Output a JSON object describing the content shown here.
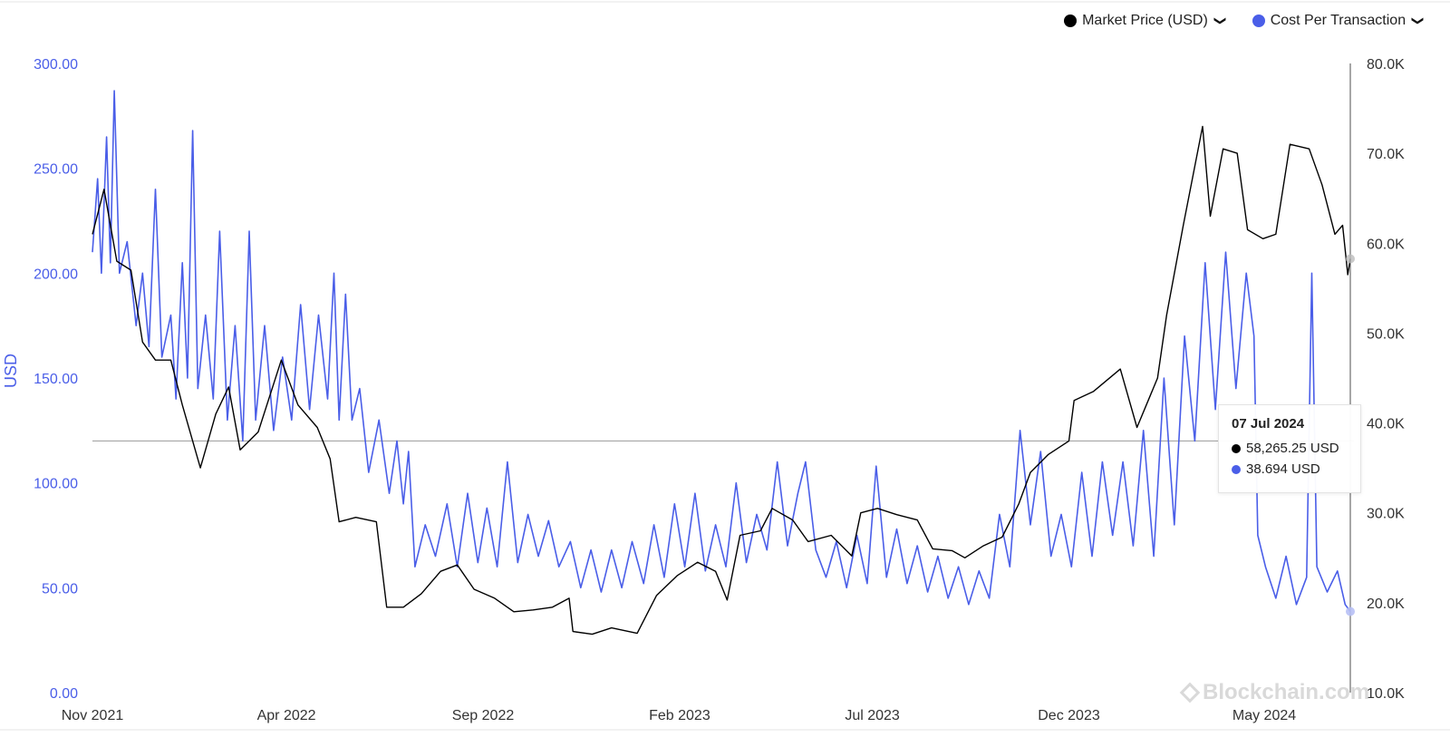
{
  "legend": {
    "items": [
      {
        "label": "Market Price (USD)",
        "color": "#000000",
        "chevron": "chevron-down-icon"
      },
      {
        "label": "Cost Per Transaction",
        "color": "#4a5ee8",
        "chevron": "chevron-down-icon"
      }
    ]
  },
  "tooltip": {
    "date": "07 Jul 2024",
    "rows": [
      {
        "value": "58,265.25 USD",
        "color": "#000000"
      },
      {
        "value": "38.694 USD",
        "color": "#4a5ee8"
      }
    ]
  },
  "watermark": {
    "text": "Blockchain.com",
    "icon": "blockchain-logo-icon"
  },
  "chart_data": {
    "type": "line",
    "x_tick_labels": [
      "Nov 2021",
      "Apr 2022",
      "Sep 2022",
      "Feb 2023",
      "Jul 2023",
      "Dec 2023",
      "May 2024"
    ],
    "x_range": [
      "2021-11-01",
      "2024-07-07"
    ],
    "y_left": {
      "label": "USD",
      "range": [
        0,
        300
      ],
      "ticks": [
        "0.00",
        "50.00",
        "100.00",
        "150.00",
        "200.00",
        "250.00",
        "300.00"
      ],
      "color": "#4a5ee8"
    },
    "y_right": {
      "range": [
        10000,
        80000
      ],
      "ticks": [
        "10.0K",
        "20.0K",
        "30.0K",
        "40.0K",
        "50.0K",
        "60.0K",
        "70.0K",
        "80.0K"
      ]
    },
    "crosshair": {
      "date": "2024-07-07",
      "y_right_value": 38000
    },
    "grid": false,
    "legend_position": "top-right",
    "series": [
      {
        "name": "Market Price (USD)",
        "axis": "right",
        "color": "#000000",
        "points": [
          [
            "2021-11-01",
            61000
          ],
          [
            "2021-11-10",
            66000
          ],
          [
            "2021-11-20",
            58000
          ],
          [
            "2021-12-01",
            57000
          ],
          [
            "2021-12-10",
            49000
          ],
          [
            "2021-12-20",
            47000
          ],
          [
            "2022-01-01",
            47000
          ],
          [
            "2022-01-10",
            42000
          ],
          [
            "2022-01-24",
            35000
          ],
          [
            "2022-02-05",
            41000
          ],
          [
            "2022-02-15",
            44000
          ],
          [
            "2022-02-24",
            37000
          ],
          [
            "2022-03-10",
            39000
          ],
          [
            "2022-03-28",
            47000
          ],
          [
            "2022-04-10",
            42000
          ],
          [
            "2022-04-25",
            39500
          ],
          [
            "2022-05-05",
            36000
          ],
          [
            "2022-05-12",
            29000
          ],
          [
            "2022-05-25",
            29500
          ],
          [
            "2022-06-10",
            29000
          ],
          [
            "2022-06-18",
            19500
          ],
          [
            "2022-07-01",
            19500
          ],
          [
            "2022-07-15",
            21000
          ],
          [
            "2022-07-30",
            23500
          ],
          [
            "2022-08-12",
            24200
          ],
          [
            "2022-08-25",
            21500
          ],
          [
            "2022-09-10",
            20500
          ],
          [
            "2022-09-25",
            19000
          ],
          [
            "2022-10-10",
            19200
          ],
          [
            "2022-10-25",
            19500
          ],
          [
            "2022-11-07",
            20500
          ],
          [
            "2022-11-10",
            16800
          ],
          [
            "2022-11-25",
            16500
          ],
          [
            "2022-12-10",
            17200
          ],
          [
            "2022-12-30",
            16600
          ],
          [
            "2023-01-14",
            20800
          ],
          [
            "2023-01-30",
            23000
          ],
          [
            "2023-02-15",
            24500
          ],
          [
            "2023-03-01",
            23500
          ],
          [
            "2023-03-10",
            20300
          ],
          [
            "2023-03-20",
            27500
          ],
          [
            "2023-04-05",
            28000
          ],
          [
            "2023-04-14",
            30500
          ],
          [
            "2023-04-30",
            29200
          ],
          [
            "2023-05-12",
            26800
          ],
          [
            "2023-05-30",
            27500
          ],
          [
            "2023-06-15",
            25200
          ],
          [
            "2023-06-22",
            30000
          ],
          [
            "2023-07-05",
            30500
          ],
          [
            "2023-07-20",
            29800
          ],
          [
            "2023-08-05",
            29200
          ],
          [
            "2023-08-17",
            26000
          ],
          [
            "2023-09-01",
            25800
          ],
          [
            "2023-09-11",
            25000
          ],
          [
            "2023-09-25",
            26300
          ],
          [
            "2023-10-10",
            27300
          ],
          [
            "2023-10-23",
            31000
          ],
          [
            "2023-11-01",
            34500
          ],
          [
            "2023-11-15",
            36500
          ],
          [
            "2023-12-01",
            38000
          ],
          [
            "2023-12-05",
            42500
          ],
          [
            "2023-12-20",
            43500
          ],
          [
            "2024-01-10",
            46000
          ],
          [
            "2024-01-23",
            39500
          ],
          [
            "2024-02-08",
            45000
          ],
          [
            "2024-02-15",
            52000
          ],
          [
            "2024-02-28",
            62000
          ],
          [
            "2024-03-14",
            73000
          ],
          [
            "2024-03-20",
            63000
          ],
          [
            "2024-03-30",
            70500
          ],
          [
            "2024-04-10",
            70000
          ],
          [
            "2024-04-18",
            61500
          ],
          [
            "2024-04-30",
            60500
          ],
          [
            "2024-05-10",
            61000
          ],
          [
            "2024-05-21",
            71000
          ],
          [
            "2024-06-05",
            70500
          ],
          [
            "2024-06-15",
            66500
          ],
          [
            "2024-06-25",
            61000
          ],
          [
            "2024-07-01",
            62000
          ],
          [
            "2024-07-05",
            56500
          ],
          [
            "2024-07-07",
            58265
          ]
        ]
      },
      {
        "name": "Cost Per Transaction",
        "axis": "left",
        "color": "#4a5ee8",
        "points": [
          [
            "2021-11-01",
            210
          ],
          [
            "2021-11-05",
            245
          ],
          [
            "2021-11-08",
            200
          ],
          [
            "2021-11-12",
            265
          ],
          [
            "2021-11-15",
            205
          ],
          [
            "2021-11-18",
            287
          ],
          [
            "2021-11-22",
            200
          ],
          [
            "2021-11-28",
            215
          ],
          [
            "2021-12-05",
            175
          ],
          [
            "2021-12-10",
            200
          ],
          [
            "2021-12-15",
            165
          ],
          [
            "2021-12-20",
            240
          ],
          [
            "2021-12-25",
            160
          ],
          [
            "2022-01-01",
            180
          ],
          [
            "2022-01-05",
            140
          ],
          [
            "2022-01-10",
            205
          ],
          [
            "2022-01-14",
            150
          ],
          [
            "2022-01-18",
            268
          ],
          [
            "2022-01-22",
            145
          ],
          [
            "2022-01-28",
            180
          ],
          [
            "2022-02-03",
            140
          ],
          [
            "2022-02-08",
            220
          ],
          [
            "2022-02-14",
            130
          ],
          [
            "2022-02-20",
            175
          ],
          [
            "2022-02-26",
            120
          ],
          [
            "2022-03-03",
            220
          ],
          [
            "2022-03-08",
            130
          ],
          [
            "2022-03-15",
            175
          ],
          [
            "2022-03-22",
            125
          ],
          [
            "2022-03-29",
            160
          ],
          [
            "2022-04-05",
            130
          ],
          [
            "2022-04-12",
            185
          ],
          [
            "2022-04-19",
            135
          ],
          [
            "2022-04-26",
            180
          ],
          [
            "2022-05-03",
            140
          ],
          [
            "2022-05-08",
            200
          ],
          [
            "2022-05-12",
            130
          ],
          [
            "2022-05-17",
            190
          ],
          [
            "2022-05-22",
            130
          ],
          [
            "2022-05-28",
            145
          ],
          [
            "2022-06-04",
            105
          ],
          [
            "2022-06-12",
            130
          ],
          [
            "2022-06-20",
            95
          ],
          [
            "2022-06-26",
            120
          ],
          [
            "2022-07-01",
            90
          ],
          [
            "2022-07-05",
            115
          ],
          [
            "2022-07-10",
            60
          ],
          [
            "2022-07-18",
            80
          ],
          [
            "2022-07-26",
            65
          ],
          [
            "2022-08-04",
            90
          ],
          [
            "2022-08-12",
            60
          ],
          [
            "2022-08-20",
            95
          ],
          [
            "2022-08-28",
            62
          ],
          [
            "2022-09-04",
            88
          ],
          [
            "2022-09-12",
            60
          ],
          [
            "2022-09-20",
            110
          ],
          [
            "2022-09-28",
            62
          ],
          [
            "2022-10-06",
            85
          ],
          [
            "2022-10-14",
            65
          ],
          [
            "2022-10-22",
            82
          ],
          [
            "2022-10-30",
            60
          ],
          [
            "2022-11-08",
            72
          ],
          [
            "2022-11-16",
            50
          ],
          [
            "2022-11-24",
            68
          ],
          [
            "2022-12-02",
            48
          ],
          [
            "2022-12-10",
            68
          ],
          [
            "2022-12-18",
            50
          ],
          [
            "2022-12-26",
            72
          ],
          [
            "2023-01-04",
            52
          ],
          [
            "2023-01-12",
            80
          ],
          [
            "2023-01-20",
            55
          ],
          [
            "2023-01-28",
            90
          ],
          [
            "2023-02-05",
            60
          ],
          [
            "2023-02-13",
            95
          ],
          [
            "2023-02-21",
            58
          ],
          [
            "2023-03-01",
            80
          ],
          [
            "2023-03-09",
            60
          ],
          [
            "2023-03-17",
            100
          ],
          [
            "2023-03-25",
            62
          ],
          [
            "2023-04-02",
            85
          ],
          [
            "2023-04-10",
            68
          ],
          [
            "2023-04-18",
            110
          ],
          [
            "2023-04-26",
            70
          ],
          [
            "2023-05-04",
            95
          ],
          [
            "2023-05-10",
            110
          ],
          [
            "2023-05-18",
            68
          ],
          [
            "2023-05-26",
            55
          ],
          [
            "2023-06-03",
            72
          ],
          [
            "2023-06-11",
            50
          ],
          [
            "2023-06-19",
            75
          ],
          [
            "2023-06-27",
            52
          ],
          [
            "2023-07-04",
            108
          ],
          [
            "2023-07-12",
            55
          ],
          [
            "2023-07-20",
            78
          ],
          [
            "2023-07-28",
            52
          ],
          [
            "2023-08-05",
            70
          ],
          [
            "2023-08-13",
            48
          ],
          [
            "2023-08-21",
            65
          ],
          [
            "2023-08-29",
            45
          ],
          [
            "2023-09-06",
            60
          ],
          [
            "2023-09-14",
            42
          ],
          [
            "2023-09-22",
            58
          ],
          [
            "2023-09-30",
            45
          ],
          [
            "2023-10-08",
            85
          ],
          [
            "2023-10-16",
            60
          ],
          [
            "2023-10-24",
            125
          ],
          [
            "2023-11-01",
            80
          ],
          [
            "2023-11-09",
            115
          ],
          [
            "2023-11-17",
            65
          ],
          [
            "2023-11-25",
            85
          ],
          [
            "2023-12-03",
            60
          ],
          [
            "2023-12-11",
            105
          ],
          [
            "2023-12-19",
            65
          ],
          [
            "2023-12-27",
            110
          ],
          [
            "2024-01-04",
            75
          ],
          [
            "2024-01-12",
            110
          ],
          [
            "2024-01-20",
            70
          ],
          [
            "2024-01-28",
            125
          ],
          [
            "2024-02-05",
            65
          ],
          [
            "2024-02-13",
            150
          ],
          [
            "2024-02-21",
            80
          ],
          [
            "2024-02-29",
            170
          ],
          [
            "2024-03-08",
            120
          ],
          [
            "2024-03-16",
            205
          ],
          [
            "2024-03-24",
            135
          ],
          [
            "2024-04-01",
            210
          ],
          [
            "2024-04-09",
            145
          ],
          [
            "2024-04-17",
            200
          ],
          [
            "2024-04-23",
            170
          ],
          [
            "2024-04-26",
            75
          ],
          [
            "2024-05-02",
            60
          ],
          [
            "2024-05-10",
            45
          ],
          [
            "2024-05-18",
            65
          ],
          [
            "2024-05-26",
            42
          ],
          [
            "2024-06-03",
            55
          ],
          [
            "2024-06-07",
            200
          ],
          [
            "2024-06-11",
            60
          ],
          [
            "2024-06-19",
            48
          ],
          [
            "2024-06-27",
            58
          ],
          [
            "2024-07-03",
            42
          ],
          [
            "2024-07-07",
            38.694
          ]
        ]
      }
    ]
  }
}
